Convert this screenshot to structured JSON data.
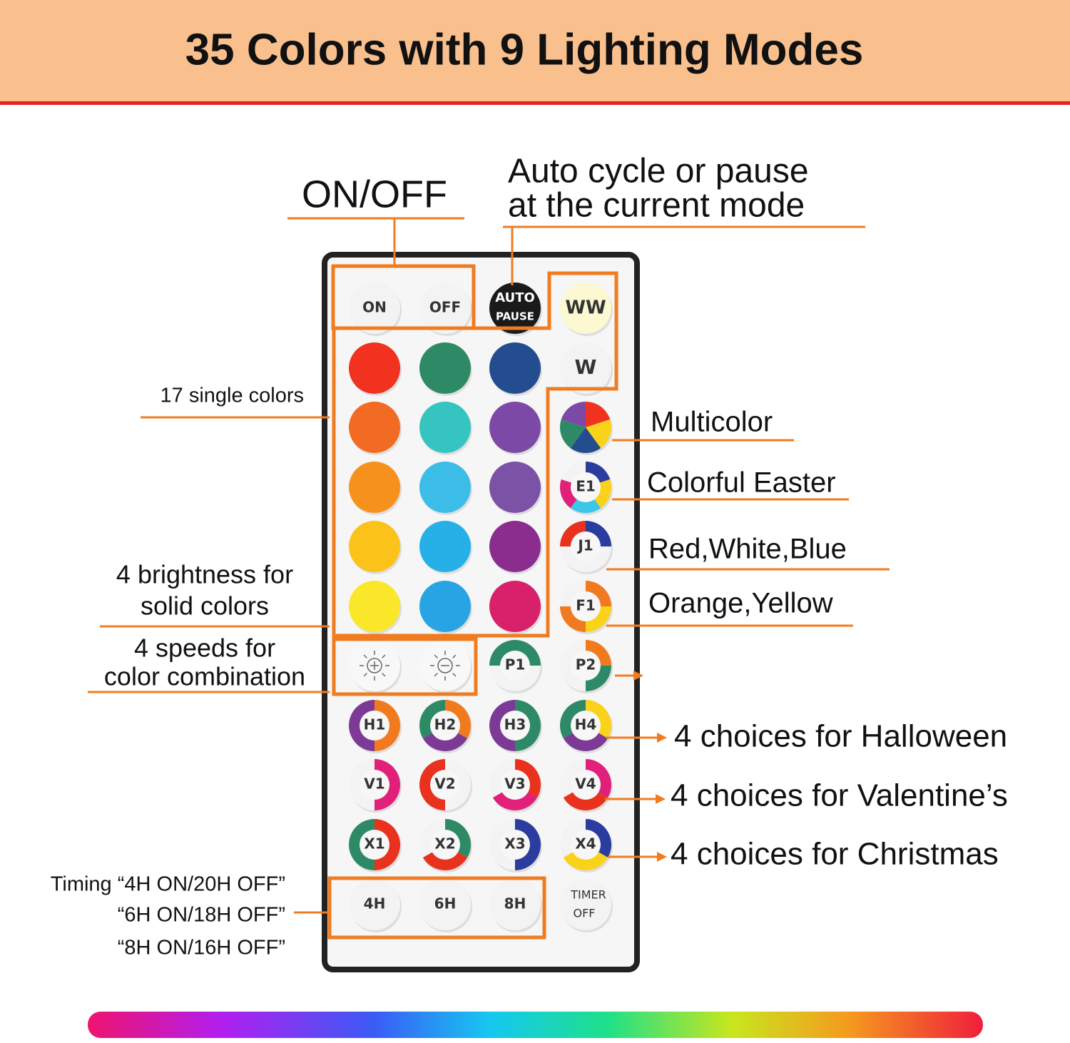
{
  "header": {
    "title": "35 Colors with 9 Lighting Modes"
  },
  "annotations": {
    "on_off": "ON/OFF",
    "auto": [
      "Auto cycle or pause",
      "at the current mode"
    ],
    "single_colors": "17 single colors",
    "multicolor": "Multicolor",
    "easter": "Colorful Easter",
    "red_white_blue": "Red,White,Blue",
    "orange_yellow": "Orange,Yellow",
    "brightness": [
      "4 brightness for",
      "solid colors"
    ],
    "speeds": [
      "4 speeds for",
      "color combination"
    ],
    "halloween": "4 choices for Halloween",
    "valentine": "4 choices for Valentine’s",
    "christmas": "4 choices for Christmas",
    "timing": [
      "Timing “4H ON/20H OFF”",
      "“6H ON/18H OFF”",
      "“8H ON/16H OFF”"
    ]
  },
  "remote": {
    "top": [
      "ON",
      "OFF",
      "AUTO",
      "PAUSE",
      "WW",
      "W"
    ],
    "modes": [
      "E1",
      "J1",
      "F1",
      "P1",
      "P2",
      "H1",
      "H2",
      "H3",
      "H4",
      "V1",
      "V2",
      "V3",
      "V4",
      "X1",
      "X2",
      "X3",
      "X4"
    ],
    "timers": [
      "4H",
      "6H",
      "8H",
      "TIMER",
      "OFF"
    ]
  }
}
